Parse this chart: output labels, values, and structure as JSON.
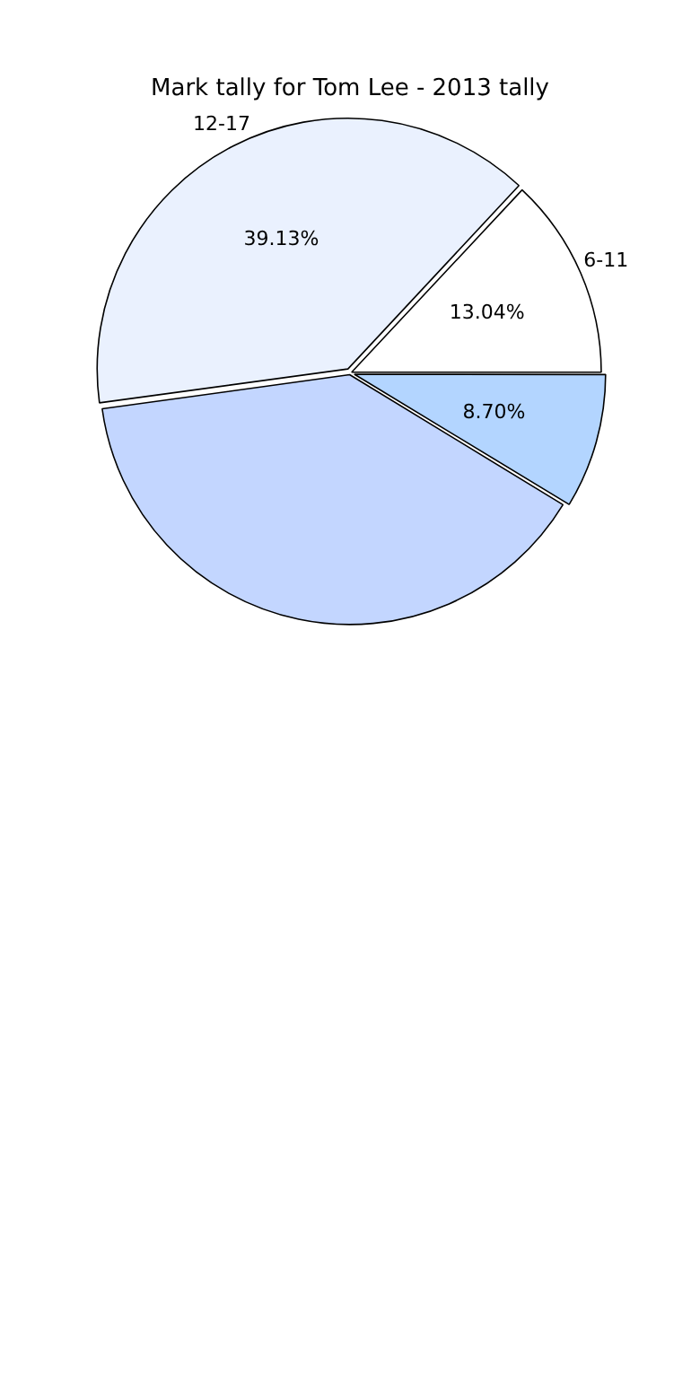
{
  "chart_data": {
    "type": "pie",
    "title": "Mark tally for Tom Lee - 2013 tally",
    "categories": [
      null,
      null,
      "12-17",
      "6-11"
    ],
    "values": [
      8.7,
      39.13,
      39.13,
      13.04
    ],
    "colors": [
      "#b3d5ff",
      "#c3d6ff",
      "#eaf1fe",
      "#ffffff"
    ],
    "value_labels": [
      "8.70%",
      null,
      "39.13%",
      "13.04%"
    ]
  }
}
